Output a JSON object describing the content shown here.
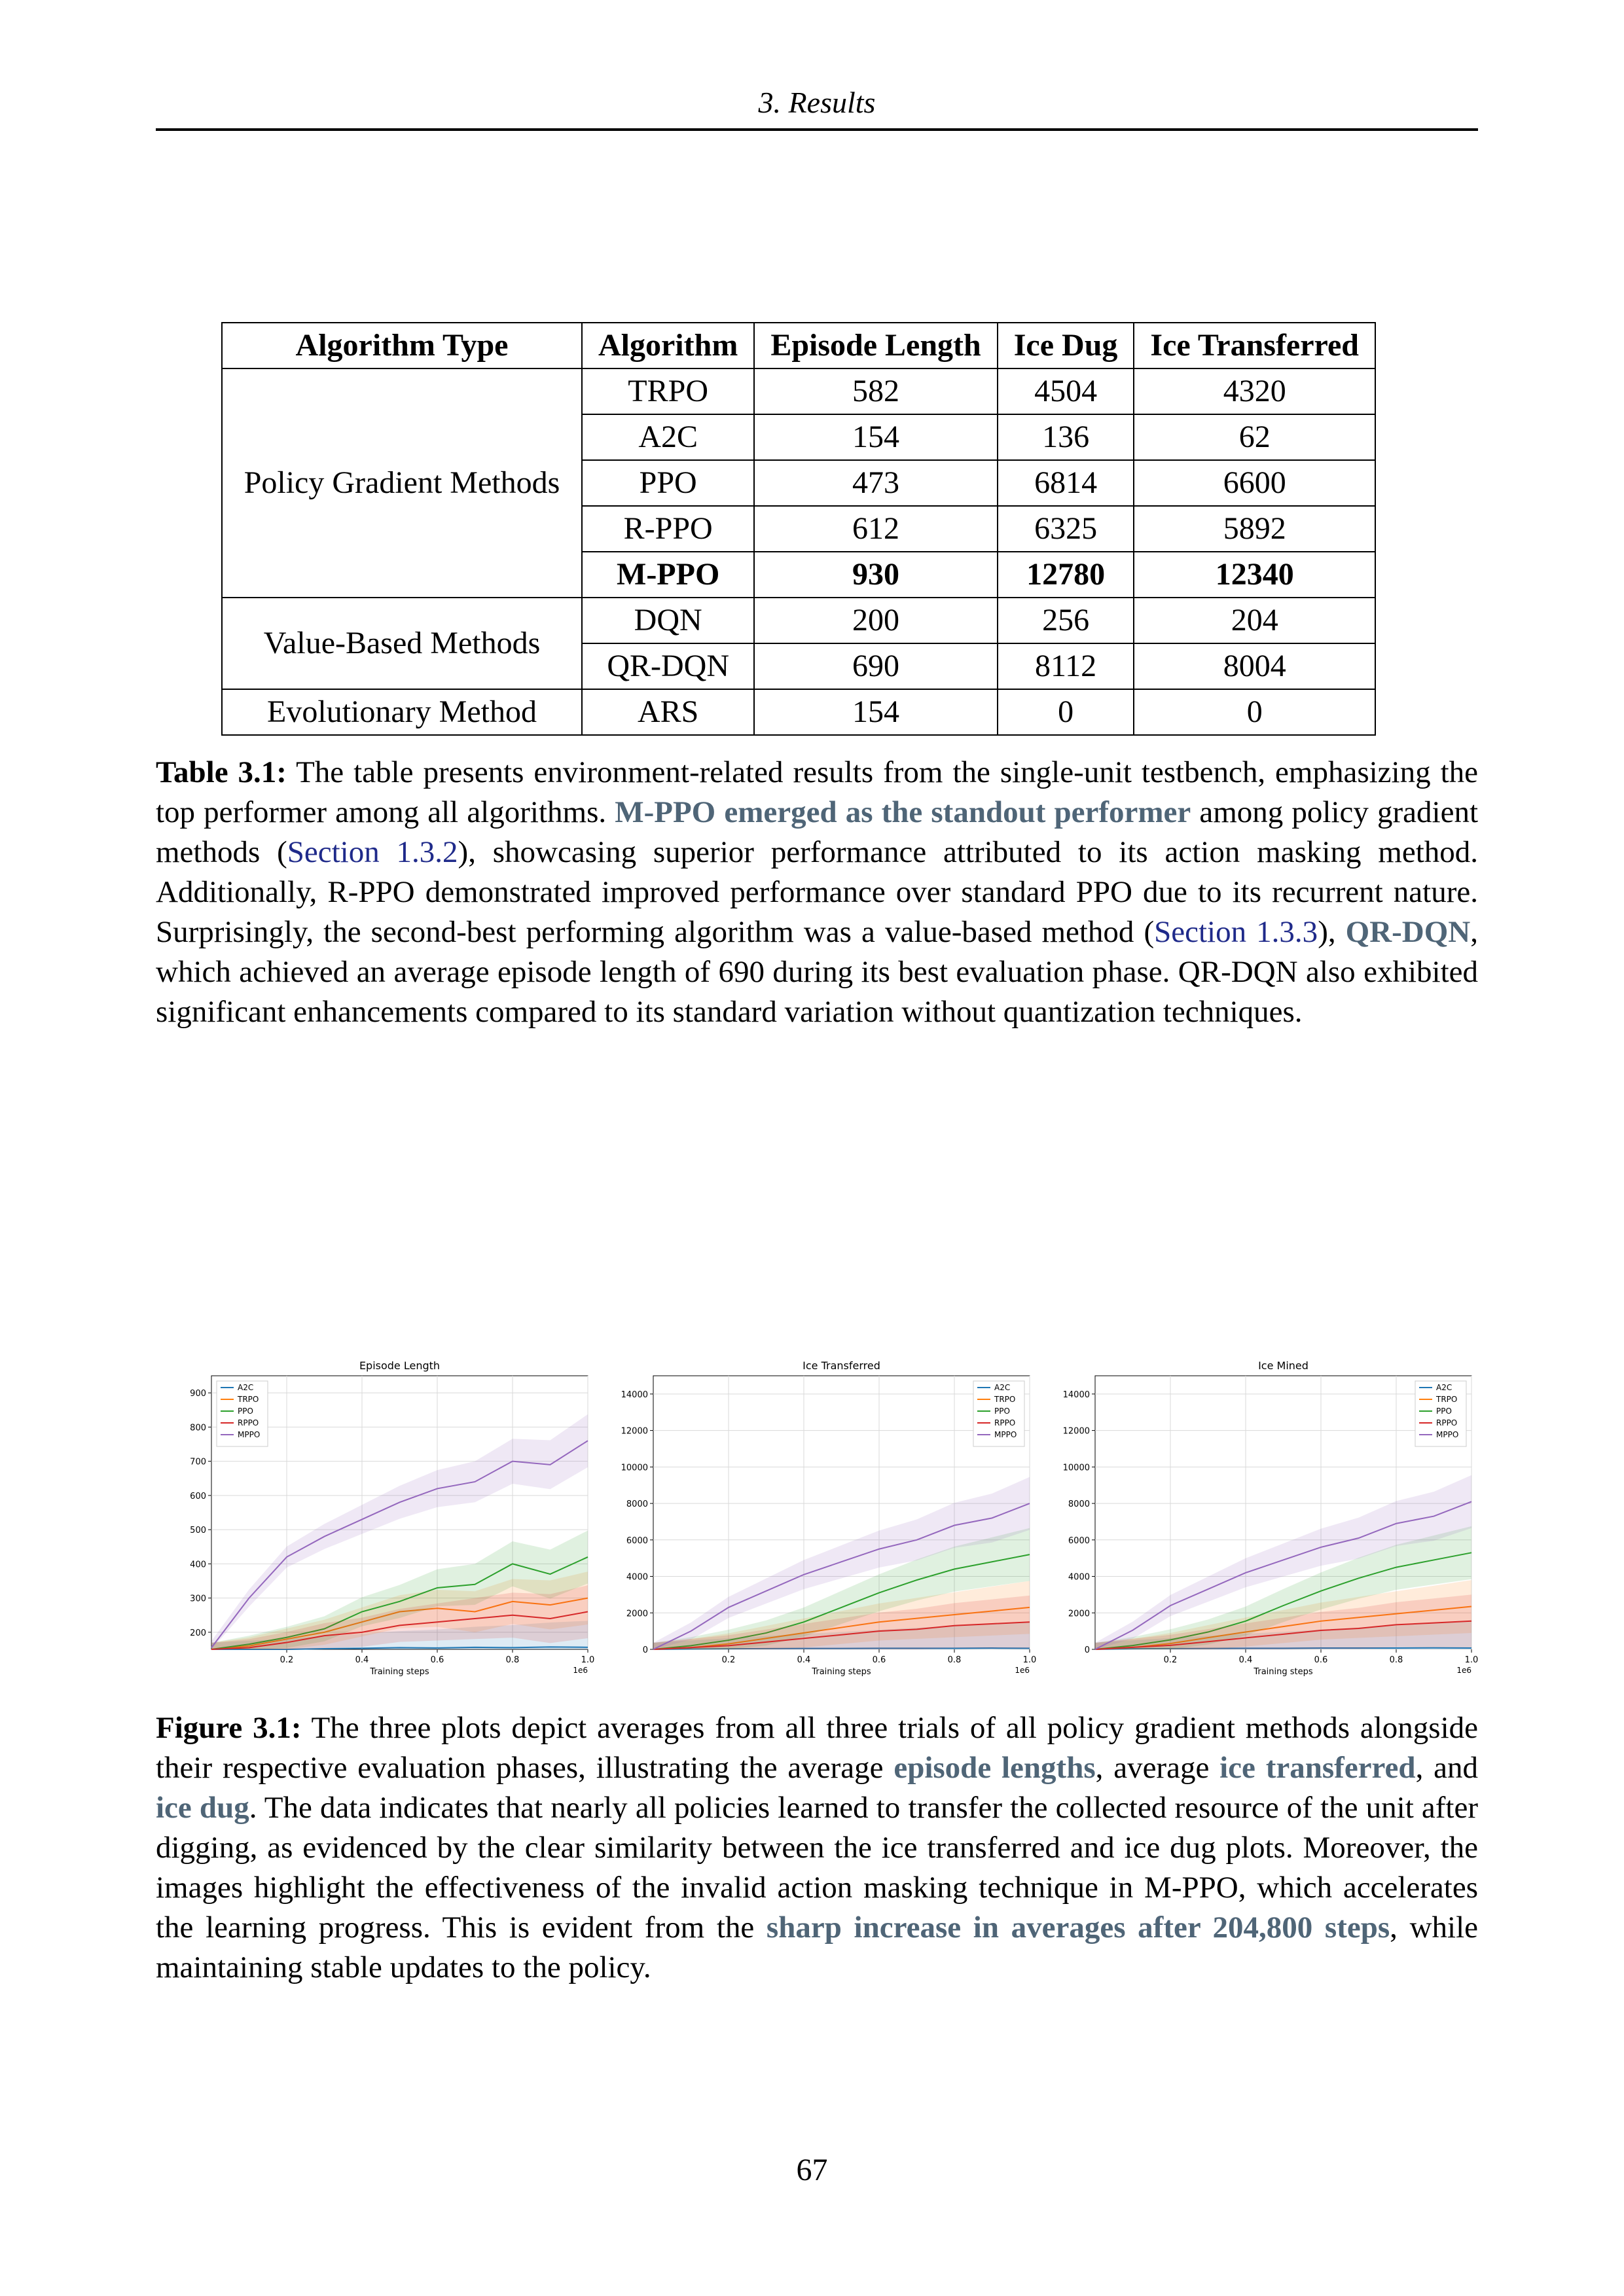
{
  "header": {
    "running_title": "3. Results"
  },
  "table": {
    "headers": [
      "Algorithm Type",
      "Algorithm",
      "Episode Length",
      "Ice Dug",
      "Ice Transferred"
    ],
    "groups": [
      {
        "type": "Policy Gradient Methods",
        "rows": [
          {
            "algorithm": "TRPO",
            "episode_length": "582",
            "ice_dug": "4504",
            "ice_transferred": "4320",
            "bold": false
          },
          {
            "algorithm": "A2C",
            "episode_length": "154",
            "ice_dug": "136",
            "ice_transferred": "62",
            "bold": false
          },
          {
            "algorithm": "PPO",
            "episode_length": "473",
            "ice_dug": "6814",
            "ice_transferred": "6600",
            "bold": false
          },
          {
            "algorithm": "R-PPO",
            "episode_length": "612",
            "ice_dug": "6325",
            "ice_transferred": "5892",
            "bold": false
          },
          {
            "algorithm": "M-PPO",
            "episode_length": "930",
            "ice_dug": "12780",
            "ice_transferred": "12340",
            "bold": true
          }
        ]
      },
      {
        "type": "Value-Based Methods",
        "rows": [
          {
            "algorithm": "DQN",
            "episode_length": "200",
            "ice_dug": "256",
            "ice_transferred": "204",
            "bold": false
          },
          {
            "algorithm": "QR-DQN",
            "episode_length": "690",
            "ice_dug": "8112",
            "ice_transferred": "8004",
            "bold": false
          }
        ]
      },
      {
        "type": "Evolutionary Method",
        "rows": [
          {
            "algorithm": "ARS",
            "episode_length": "154",
            "ice_dug": "0",
            "ice_transferred": "0",
            "bold": false
          }
        ]
      }
    ]
  },
  "table_caption": {
    "label": "Table 3.1:",
    "t1": " The table presents environment-related results from the single-unit testbench, emphasizing the top performer among all algorithms. ",
    "h1": "M-PPO emerged as the standout performer",
    "t2": " among policy gradient methods (",
    "r1": "Section 1.3.2",
    "t3": "), showcasing superior performance attributed to its action masking method. Additionally, R-PPO demonstrated improved performance over standard PPO due to its recurrent nature. Surprisingly, the second-best performing algorithm was a value-based method (",
    "r2": "Section 1.3.3",
    "t4": "), ",
    "h2": "QR-DQN",
    "t5": ", which achieved an average episode length of 690 during its best evaluation phase. QR-DQN also exhibited significant enhancements compared to its standard variation without quantization techniques."
  },
  "figure_caption": {
    "label": "Figure 3.1:",
    "t1": " The three plots depict averages from all three trials of all policy gradient methods alongside their respective evaluation phases, illustrating the average ",
    "h1": "episode lengths",
    "t2": ", average ",
    "h2": "ice transferred",
    "t3": ", and ",
    "h3": "ice dug",
    "t4": ". The data indicates that nearly all policies learned to transfer the collected resource of the unit after digging, as evidenced by the clear similarity between the ice transferred and ice dug plots. Moreover, the images highlight the effectiveness of the invalid action masking technique in M-PPO, which accelerates the learning progress. This is evident from the ",
    "h4": "sharp increase in averages after 204,800 steps",
    "t5": ", while maintaining stable updates to the policy."
  },
  "page_number": "67",
  "chart_data": [
    {
      "type": "line",
      "title": "Episode Length",
      "xlabel": "Training steps",
      "x_offset_label": "1e6",
      "xlim": [
        0,
        1.0
      ],
      "xticks": [
        "0.2",
        "0.4",
        "0.6",
        "0.8",
        "1.0"
      ],
      "ylim": [
        150,
        950
      ],
      "yticks": [
        "200",
        "300",
        "400",
        "500",
        "600",
        "700",
        "800",
        "900"
      ],
      "legend_position": "top-left",
      "grid": true,
      "series": [
        {
          "name": "A2C",
          "color": "#1f77b4",
          "x": [
            0,
            0.1,
            0.2,
            0.3,
            0.4,
            0.5,
            0.6,
            0.7,
            0.8,
            0.9,
            1.0
          ],
          "values": [
            150,
            150,
            150,
            152,
            153,
            155,
            154,
            156,
            155,
            157,
            156
          ]
        },
        {
          "name": "TRPO",
          "color": "#ff7f0e",
          "x": [
            0,
            0.1,
            0.2,
            0.3,
            0.4,
            0.5,
            0.6,
            0.7,
            0.8,
            0.9,
            1.0
          ],
          "values": [
            150,
            160,
            180,
            200,
            230,
            260,
            270,
            260,
            290,
            280,
            300
          ]
        },
        {
          "name": "PPO",
          "color": "#2ca02c",
          "x": [
            0,
            0.1,
            0.2,
            0.3,
            0.4,
            0.5,
            0.6,
            0.7,
            0.8,
            0.9,
            1.0
          ],
          "values": [
            150,
            165,
            185,
            210,
            260,
            290,
            330,
            340,
            400,
            370,
            420
          ]
        },
        {
          "name": "RPPO",
          "color": "#d62728",
          "x": [
            0,
            0.1,
            0.2,
            0.3,
            0.4,
            0.5,
            0.6,
            0.7,
            0.8,
            0.9,
            1.0
          ],
          "values": [
            150,
            155,
            170,
            190,
            200,
            220,
            230,
            240,
            250,
            240,
            260
          ]
        },
        {
          "name": "MPPO",
          "color": "#9467bd",
          "x": [
            0,
            0.1,
            0.2,
            0.3,
            0.4,
            0.5,
            0.6,
            0.7,
            0.8,
            0.9,
            1.0
          ],
          "values": [
            155,
            300,
            420,
            480,
            530,
            580,
            620,
            640,
            700,
            690,
            760
          ]
        }
      ]
    },
    {
      "type": "line",
      "title": "Ice Transferred",
      "xlabel": "Training steps",
      "x_offset_label": "1e6",
      "xlim": [
        0,
        1.0
      ],
      "xticks": [
        "0.2",
        "0.4",
        "0.6",
        "0.8",
        "1.0"
      ],
      "ylim": [
        0,
        15000
      ],
      "yticks": [
        "0",
        "2000",
        "4000",
        "6000",
        "8000",
        "10000",
        "12000",
        "14000"
      ],
      "legend_position": "top-right",
      "grid": true,
      "series": [
        {
          "name": "A2C",
          "color": "#1f77b4",
          "x": [
            0,
            0.1,
            0.2,
            0.3,
            0.4,
            0.5,
            0.6,
            0.7,
            0.8,
            0.9,
            1.0
          ],
          "values": [
            0,
            20,
            30,
            40,
            50,
            50,
            60,
            60,
            60,
            70,
            60
          ]
        },
        {
          "name": "TRPO",
          "color": "#ff7f0e",
          "x": [
            0,
            0.1,
            0.2,
            0.3,
            0.4,
            0.5,
            0.6,
            0.7,
            0.8,
            0.9,
            1.0
          ],
          "values": [
            0,
            100,
            300,
            600,
            900,
            1200,
            1500,
            1700,
            1900,
            2100,
            2300
          ]
        },
        {
          "name": "PPO",
          "color": "#2ca02c",
          "x": [
            0,
            0.1,
            0.2,
            0.3,
            0.4,
            0.5,
            0.6,
            0.7,
            0.8,
            0.9,
            1.0
          ],
          "values": [
            0,
            200,
            500,
            900,
            1500,
            2300,
            3100,
            3800,
            4400,
            4800,
            5200
          ]
        },
        {
          "name": "RPPO",
          "color": "#d62728",
          "x": [
            0,
            0.1,
            0.2,
            0.3,
            0.4,
            0.5,
            0.6,
            0.7,
            0.8,
            0.9,
            1.0
          ],
          "values": [
            0,
            100,
            200,
            400,
            600,
            800,
            1000,
            1100,
            1300,
            1400,
            1500
          ]
        },
        {
          "name": "MPPO",
          "color": "#9467bd",
          "x": [
            0,
            0.1,
            0.2,
            0.3,
            0.4,
            0.5,
            0.6,
            0.7,
            0.8,
            0.9,
            1.0
          ],
          "values": [
            0,
            1000,
            2300,
            3200,
            4100,
            4800,
            5500,
            6000,
            6800,
            7200,
            8000
          ]
        }
      ]
    },
    {
      "type": "line",
      "title": "Ice Mined",
      "xlabel": "Training steps",
      "x_offset_label": "1e6",
      "xlim": [
        0,
        1.0
      ],
      "xticks": [
        "0.2",
        "0.4",
        "0.6",
        "0.8",
        "1.0"
      ],
      "ylim": [
        0,
        15000
      ],
      "yticks": [
        "0",
        "2000",
        "4000",
        "6000",
        "8000",
        "10000",
        "12000",
        "14000"
      ],
      "legend_position": "top-right",
      "grid": true,
      "series": [
        {
          "name": "A2C",
          "color": "#1f77b4",
          "x": [
            0,
            0.1,
            0.2,
            0.3,
            0.4,
            0.5,
            0.6,
            0.7,
            0.8,
            0.9,
            1.0
          ],
          "values": [
            0,
            30,
            40,
            50,
            60,
            60,
            70,
            70,
            70,
            80,
            70
          ]
        },
        {
          "name": "TRPO",
          "color": "#ff7f0e",
          "x": [
            0,
            0.1,
            0.2,
            0.3,
            0.4,
            0.5,
            0.6,
            0.7,
            0.8,
            0.9,
            1.0
          ],
          "values": [
            0,
            110,
            320,
            640,
            950,
            1250,
            1550,
            1750,
            1950,
            2150,
            2350
          ]
        },
        {
          "name": "PPO",
          "color": "#2ca02c",
          "x": [
            0,
            0.1,
            0.2,
            0.3,
            0.4,
            0.5,
            0.6,
            0.7,
            0.8,
            0.9,
            1.0
          ],
          "values": [
            0,
            210,
            520,
            950,
            1550,
            2400,
            3200,
            3900,
            4500,
            4900,
            5300
          ]
        },
        {
          "name": "RPPO",
          "color": "#d62728",
          "x": [
            0,
            0.1,
            0.2,
            0.3,
            0.4,
            0.5,
            0.6,
            0.7,
            0.8,
            0.9,
            1.0
          ],
          "values": [
            0,
            110,
            220,
            420,
            630,
            830,
            1040,
            1150,
            1350,
            1450,
            1550
          ]
        },
        {
          "name": "MPPO",
          "color": "#9467bd",
          "x": [
            0,
            0.1,
            0.2,
            0.3,
            0.4,
            0.5,
            0.6,
            0.7,
            0.8,
            0.9,
            1.0
          ],
          "values": [
            0,
            1050,
            2400,
            3300,
            4200,
            4900,
            5600,
            6100,
            6900,
            7300,
            8100
          ]
        }
      ]
    }
  ]
}
